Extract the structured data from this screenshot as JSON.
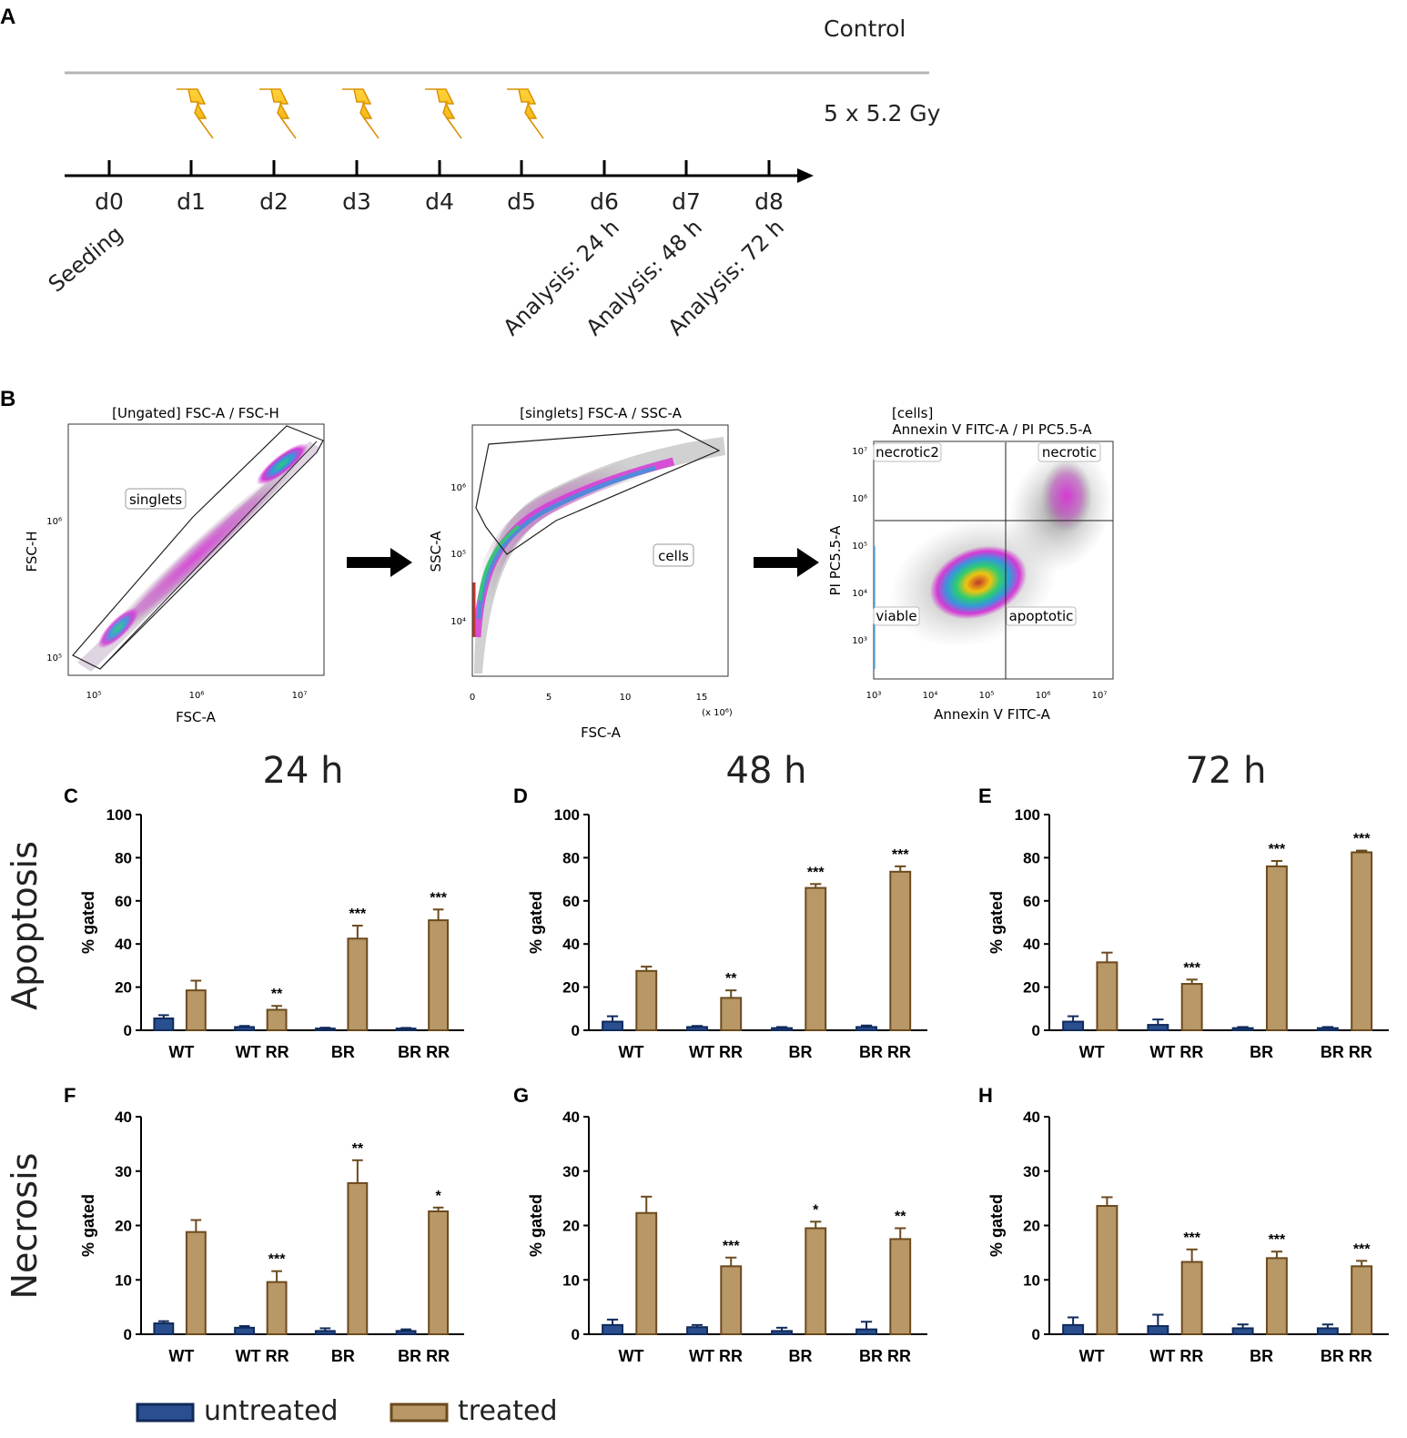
{
  "panel_letters": {
    "A": "A",
    "B": "B",
    "C": "C",
    "D": "D",
    "E": "E",
    "F": "F",
    "G": "G",
    "H": "H"
  },
  "timeline": {
    "control_label": "Control",
    "treatment_label": "5 x 5.2 Gy",
    "days": [
      "d0",
      "d1",
      "d2",
      "d3",
      "d4",
      "d5",
      "d6",
      "d7",
      "d8"
    ],
    "irradiation_days": [
      "d1",
      "d2",
      "d3",
      "d4",
      "d5"
    ],
    "annotations": {
      "seeding": "Seeding",
      "a24": "Analysis: 24 h",
      "a48": "Analysis: 48 h",
      "a72": "Analysis: 72 h"
    }
  },
  "flow": {
    "plot1": {
      "title": "[Ungated] FSC-A / FSC-H",
      "gate": "singlets",
      "xlabel": "FSC-A",
      "ylabel": "FSC-H",
      "xticks": [
        "10⁵",
        "10⁶",
        "10⁷"
      ],
      "yticks": [
        "10⁶",
        "10⁵"
      ]
    },
    "plot2": {
      "title": "[singlets] FSC-A / SSC-A",
      "gate": "cells",
      "xlabel": "FSC-A",
      "ylabel": "SSC-A",
      "xticks": [
        "0",
        "5",
        "10",
        "15"
      ],
      "xscale": "(x 10⁶)",
      "yticks": [
        "10⁶",
        "10⁵",
        "10⁴"
      ]
    },
    "plot3": {
      "title1": "[cells]",
      "title2": "Annexin V FITC-A / PI PC5.5-A",
      "xlabel": "Annexin V FITC-A",
      "ylabel": "PI PC5.5-A",
      "quadrants": [
        "necrotic2",
        "necrotic",
        "viable",
        "apoptotic"
      ],
      "xticks": [
        "10³",
        "10⁴",
        "10⁵",
        "10⁶",
        "10⁷"
      ],
      "yticks": [
        "10⁷",
        "10⁶",
        "10⁵",
        "10⁴",
        "10³"
      ]
    }
  },
  "time_headers": [
    "24 h",
    "48 h",
    "72 h"
  ],
  "row_labels": [
    "Apoptosis",
    "Necrosis"
  ],
  "colors": {
    "untreated": "#2a4f8f",
    "untreated_edge": "#102a5a",
    "treated": "#b99867",
    "treated_edge": "#6b4a1e"
  },
  "legend": {
    "untreated": "untreated",
    "treated": "treated"
  },
  "chart_data": [
    {
      "panel": "C",
      "type": "bar",
      "time": "24 h",
      "ylabel": "% gated",
      "ylim": [
        0,
        100
      ],
      "yticks": [
        "0",
        "20",
        "40",
        "60",
        "80",
        "100"
      ],
      "categories": [
        "WT",
        "WT RR",
        "BR",
        "BR RR"
      ],
      "series": [
        {
          "name": "untreated",
          "values": [
            5.5,
            1.5,
            0.8,
            0.8
          ],
          "errors": [
            1.5,
            0.5,
            0.4,
            0.3
          ]
        },
        {
          "name": "treated",
          "values": [
            18.5,
            9.5,
            42.5,
            51
          ],
          "errors": [
            4.5,
            1.8,
            6,
            5
          ]
        }
      ],
      "significance": [
        "",
        "**",
        "***",
        "***"
      ]
    },
    {
      "panel": "D",
      "type": "bar",
      "time": "48 h",
      "ylabel": "% gated",
      "ylim": [
        0,
        100
      ],
      "yticks": [
        "0",
        "20",
        "40",
        "60",
        "80",
        "100"
      ],
      "categories": [
        "WT",
        "WT RR",
        "BR",
        "BR RR"
      ],
      "series": [
        {
          "name": "untreated",
          "values": [
            4,
            1.5,
            1,
            1.5
          ],
          "errors": [
            2.5,
            0.5,
            0.5,
            0.7
          ]
        },
        {
          "name": "treated",
          "values": [
            27.5,
            15,
            66,
            73.5
          ],
          "errors": [
            2,
            3.5,
            1.8,
            2.5
          ]
        }
      ],
      "significance": [
        "",
        "**",
        "***",
        "***"
      ]
    },
    {
      "panel": "E",
      "type": "bar",
      "time": "72 h",
      "ylabel": "% gated",
      "ylim": [
        0,
        100
      ],
      "yticks": [
        "0",
        "20",
        "40",
        "60",
        "80",
        "100"
      ],
      "categories": [
        "WT",
        "WT RR",
        "BR",
        "BR RR"
      ],
      "series": [
        {
          "name": "untreated",
          "values": [
            4,
            2.5,
            1,
            1
          ],
          "errors": [
            2.5,
            2.5,
            0.5,
            0.5
          ]
        },
        {
          "name": "treated",
          "values": [
            31.5,
            21.5,
            76,
            82.5
          ],
          "errors": [
            4.5,
            2,
            2.5,
            0.8
          ]
        }
      ],
      "significance": [
        "",
        "***",
        "***",
        "***"
      ]
    },
    {
      "panel": "F",
      "type": "bar",
      "time": "24 h",
      "ylabel": "% gated",
      "ylim": [
        0,
        40
      ],
      "yticks": [
        "0",
        "10",
        "20",
        "30",
        "40"
      ],
      "categories": [
        "WT",
        "WT RR",
        "BR",
        "BR RR"
      ],
      "series": [
        {
          "name": "untreated",
          "values": [
            2,
            1.2,
            0.6,
            0.6
          ],
          "errors": [
            0.4,
            0.3,
            0.5,
            0.3
          ]
        },
        {
          "name": "treated",
          "values": [
            18.8,
            9.6,
            27.8,
            22.6
          ],
          "errors": [
            2.2,
            2,
            4.2,
            0.7
          ]
        }
      ],
      "significance": [
        "",
        "***",
        "**",
        "*"
      ]
    },
    {
      "panel": "G",
      "type": "bar",
      "time": "48 h",
      "ylabel": "% gated",
      "ylim": [
        0,
        40
      ],
      "yticks": [
        "0",
        "10",
        "20",
        "30",
        "40"
      ],
      "categories": [
        "WT",
        "WT RR",
        "BR",
        "BR RR"
      ],
      "series": [
        {
          "name": "untreated",
          "values": [
            1.7,
            1.3,
            0.6,
            0.9
          ],
          "errors": [
            1,
            0.4,
            0.6,
            1.4
          ]
        },
        {
          "name": "treated",
          "values": [
            22.3,
            12.5,
            19.5,
            17.5
          ],
          "errors": [
            3,
            1.6,
            1.2,
            2
          ]
        }
      ],
      "significance": [
        "",
        "***",
        "*",
        "**"
      ]
    },
    {
      "panel": "H",
      "type": "bar",
      "time": "72 h",
      "ylabel": "% gated",
      "ylim": [
        0,
        40
      ],
      "yticks": [
        "0",
        "10",
        "20",
        "30",
        "40"
      ],
      "categories": [
        "WT",
        "WT RR",
        "BR",
        "BR RR"
      ],
      "series": [
        {
          "name": "untreated",
          "values": [
            1.7,
            1.5,
            1.1,
            1.1
          ],
          "errors": [
            1.4,
            2.1,
            0.7,
            0.7
          ]
        },
        {
          "name": "treated",
          "values": [
            23.6,
            13.3,
            14,
            12.5
          ],
          "errors": [
            1.6,
            2.3,
            1.2,
            1
          ]
        }
      ],
      "significance": [
        "",
        "***",
        "***",
        "***"
      ]
    }
  ]
}
